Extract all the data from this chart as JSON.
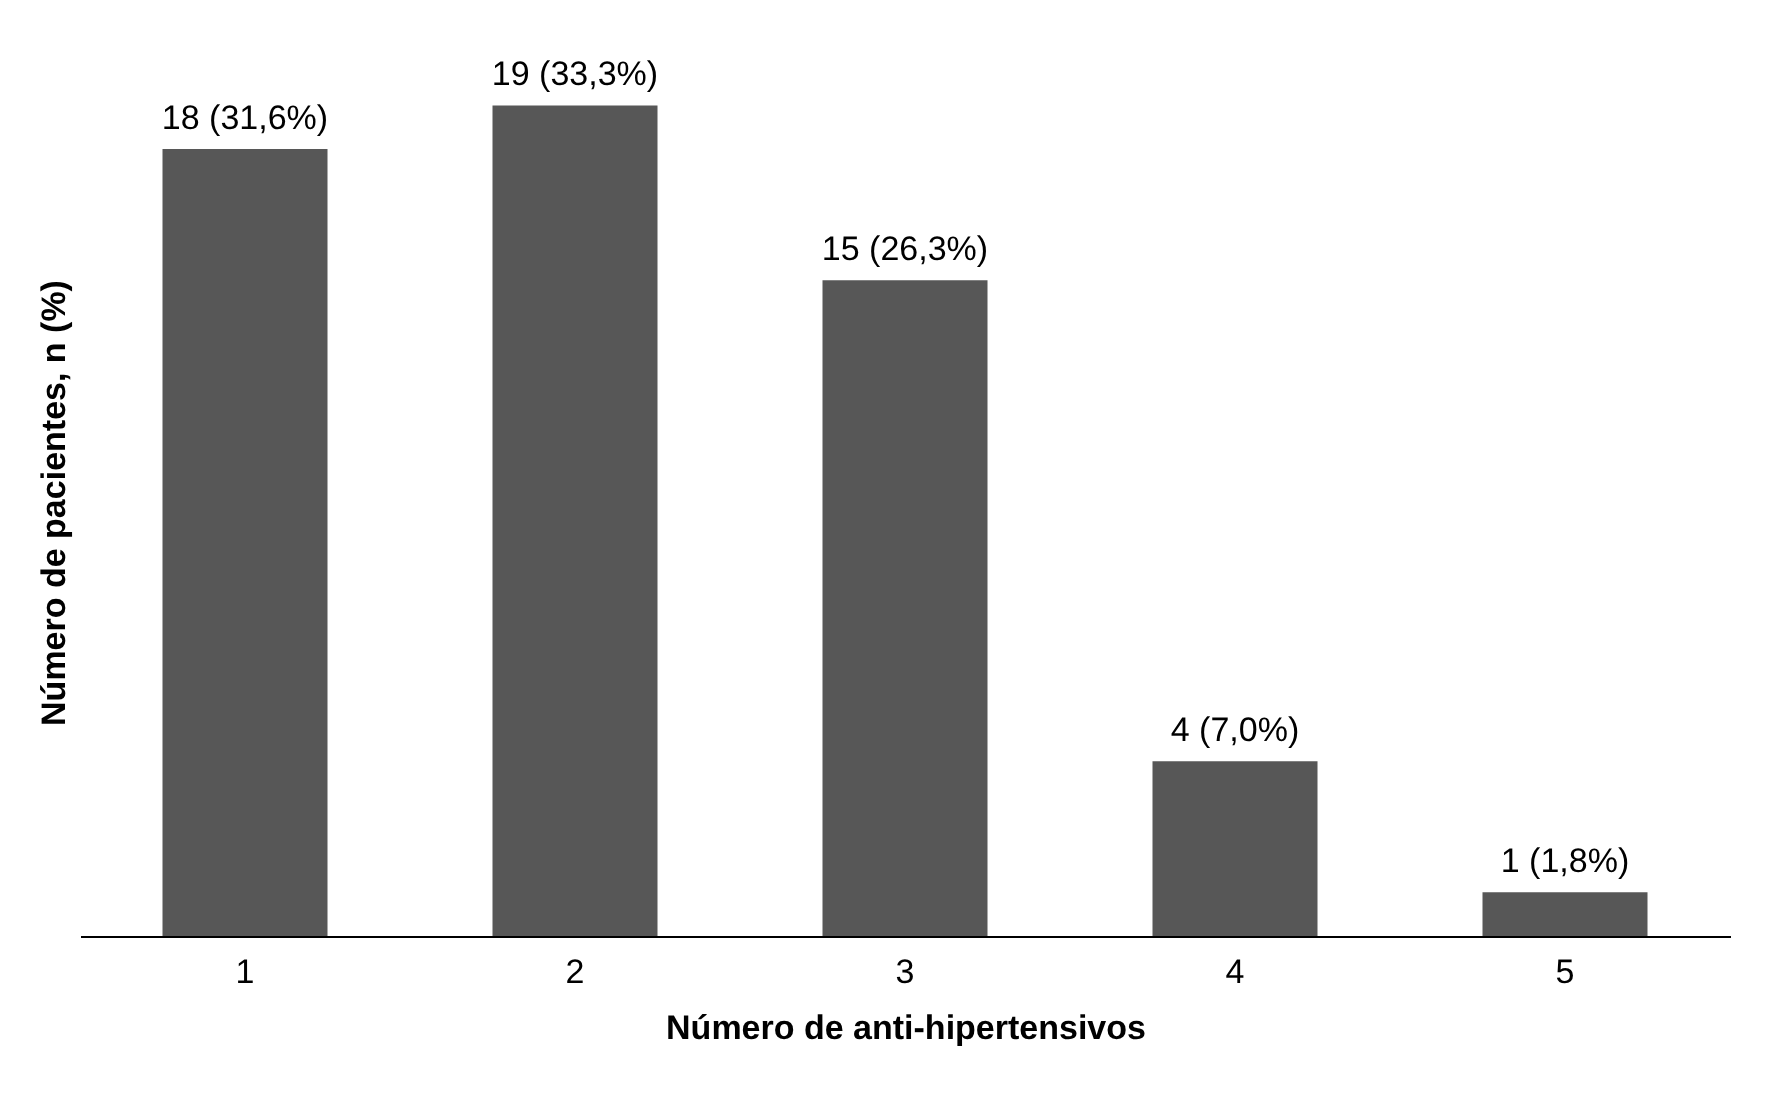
{
  "chart_data": {
    "type": "bar",
    "xlabel": "Número de anti-hipertensivos",
    "ylabel": "Número de pacientes, n (%)",
    "categories": [
      "1",
      "2",
      "3",
      "4",
      "5"
    ],
    "values": [
      18,
      19,
      15,
      4,
      1
    ],
    "value_labels": [
      "18 (31,6%)",
      "19 (33,3%)",
      "15 (26,3%)",
      "4 (7,0%)",
      "1 (1,8%)"
    ],
    "color": "#575757",
    "grid": false
  }
}
